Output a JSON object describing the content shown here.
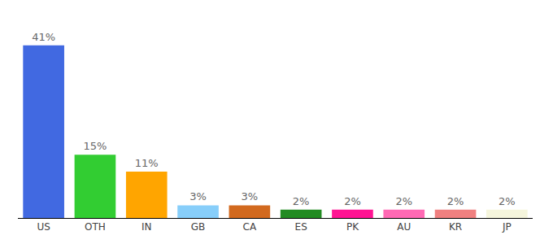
{
  "chart_data": {
    "type": "bar",
    "categories": [
      "US",
      "OTH",
      "IN",
      "GB",
      "CA",
      "ES",
      "PK",
      "AU",
      "KR",
      "JP"
    ],
    "values": [
      41,
      15,
      11,
      3,
      3,
      2,
      2,
      2,
      2,
      2
    ],
    "value_labels": [
      "41%",
      "15%",
      "11%",
      "3%",
      "3%",
      "2%",
      "2%",
      "2%",
      "2%",
      "2%"
    ],
    "colors": [
      "#4169e1",
      "#32cd32",
      "#ffa500",
      "#87cefa",
      "#d2691e",
      "#228b22",
      "#ff1493",
      "#ff69b4",
      "#f08080",
      "#f5f5dc"
    ],
    "ylim": [
      0,
      45
    ],
    "grid": false,
    "data_labels": true,
    "tick_labels": "x"
  }
}
